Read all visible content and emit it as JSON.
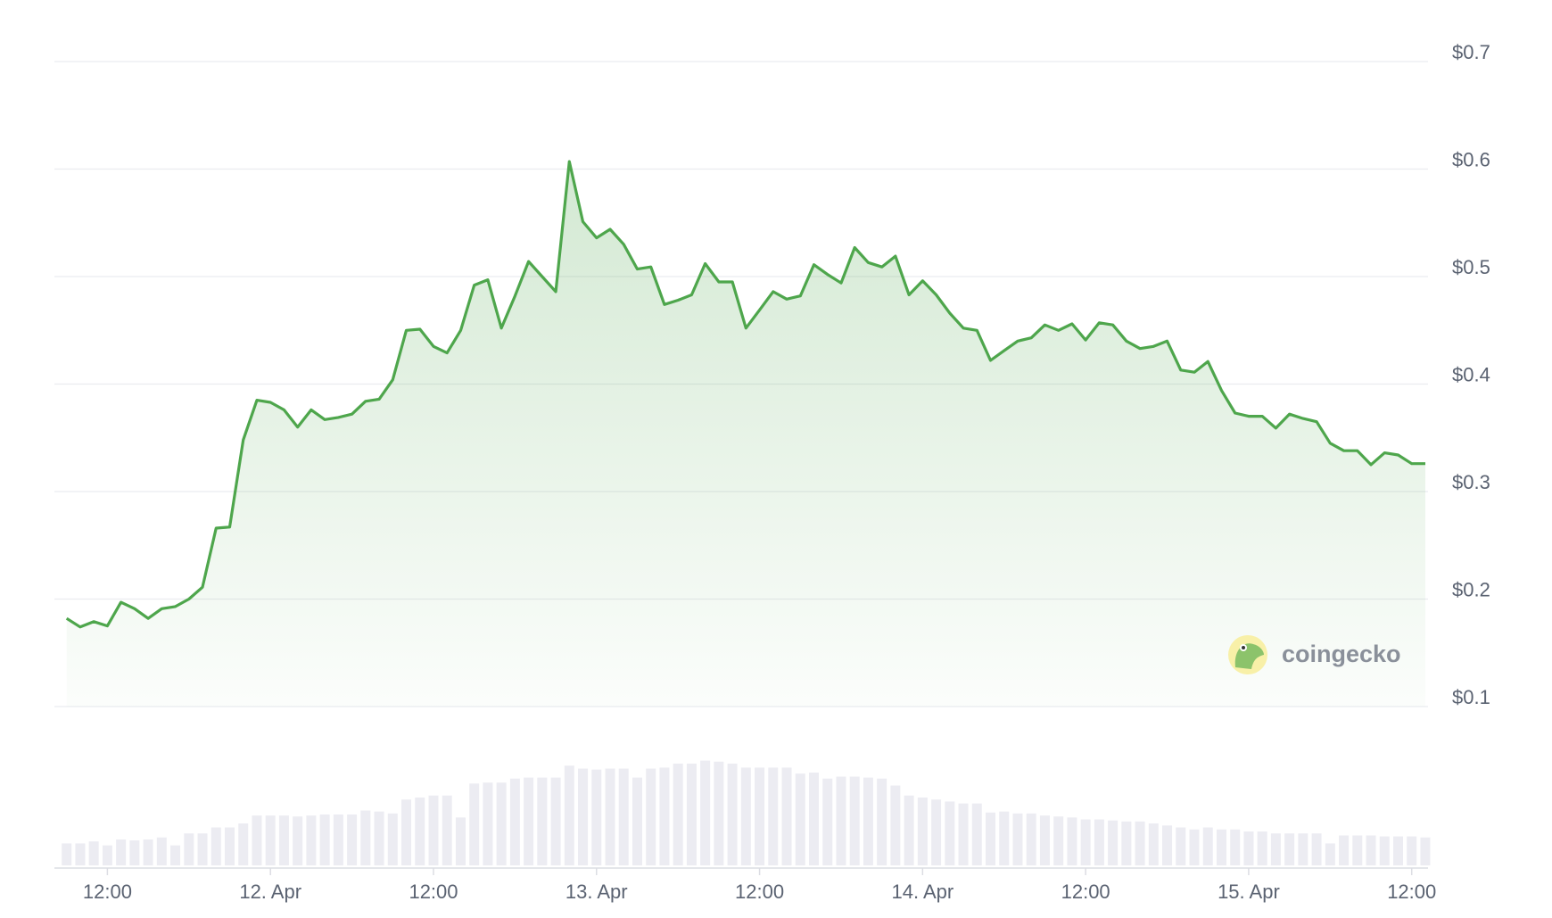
{
  "chart_data": [
    {
      "type": "line",
      "x": [
        9,
        10,
        11,
        12,
        13,
        14,
        15,
        16,
        17,
        18,
        19,
        20,
        21,
        22,
        23,
        24,
        25,
        26,
        27,
        28,
        29,
        30,
        31,
        32,
        33,
        34,
        35,
        36,
        37,
        38,
        39,
        40,
        41,
        42,
        43,
        44,
        45,
        46,
        47,
        48,
        49,
        50,
        51,
        52,
        53,
        54,
        55,
        56,
        57,
        58,
        59,
        60,
        61,
        62,
        63,
        64,
        65,
        66,
        67,
        68,
        69,
        70,
        71,
        72,
        73,
        74,
        75,
        76,
        77,
        78,
        79,
        80,
        81,
        82,
        83,
        84,
        85,
        86,
        87,
        88,
        89,
        90,
        91,
        92,
        93,
        94,
        95,
        96,
        97,
        98,
        99,
        100,
        101,
        102,
        103,
        104,
        105,
        106,
        107,
        108,
        109
      ],
      "series": [
        {
          "color": "#4ea64c",
          "values": [
            0.182,
            0.174,
            0.179,
            0.175,
            0.197,
            0.191,
            0.182,
            0.191,
            0.193,
            0.2,
            0.211,
            0.266,
            0.267,
            0.348,
            0.385,
            0.383,
            0.376,
            0.36,
            0.376,
            0.367,
            0.369,
            0.372,
            0.384,
            0.386,
            0.404,
            0.45,
            0.451,
            0.435,
            0.429,
            0.45,
            0.492,
            0.497,
            0.452,
            0.482,
            0.514,
            0.5,
            0.486,
            0.607,
            0.551,
            0.536,
            0.544,
            0.53,
            0.507,
            0.509,
            0.474,
            0.478,
            0.483,
            0.512,
            0.495,
            0.495,
            0.452,
            0.469,
            0.486,
            0.479,
            0.482,
            0.511,
            0.502,
            0.494,
            0.527,
            0.513,
            0.509,
            0.519,
            0.483,
            0.496,
            0.483,
            0.466,
            0.452,
            0.45,
            0.422,
            0.431,
            0.44,
            0.443,
            0.455,
            0.45,
            0.456,
            0.441,
            0.457,
            0.455,
            0.44,
            0.433,
            0.435,
            0.44,
            0.413,
            0.411,
            0.421,
            0.394,
            0.373,
            0.37,
            0.37,
            0.359,
            0.372,
            0.368,
            0.365,
            0.345,
            0.338,
            0.338,
            0.325,
            0.336,
            0.334,
            0.326,
            0.326
          ]
        }
      ],
      "xlim": [
        8.1,
        109.2
      ],
      "xticks": [
        {
          "value": 12,
          "label": "12:00"
        },
        {
          "value": 24,
          "label": "12. Apr"
        },
        {
          "value": 36,
          "label": "12:00"
        },
        {
          "value": 48,
          "label": "13. Apr"
        },
        {
          "value": 60,
          "label": "12:00"
        },
        {
          "value": 72,
          "label": "14. Apr"
        },
        {
          "value": 84,
          "label": "12:00"
        },
        {
          "value": 96,
          "label": "15. Apr"
        },
        {
          "value": 108,
          "label": "12:00"
        }
      ],
      "ylim": [
        0.1,
        0.7
      ],
      "yticks": [
        {
          "value": 0.1,
          "label": "$0.1"
        },
        {
          "value": 0.2,
          "label": "$0.2"
        },
        {
          "value": 0.3,
          "label": "$0.3"
        },
        {
          "value": 0.4,
          "label": "$0.4"
        },
        {
          "value": 0.5,
          "label": "$0.5"
        },
        {
          "value": 0.6,
          "label": "$0.6"
        },
        {
          "value": 0.7,
          "label": "$0.7"
        }
      ],
      "grid": true,
      "watermark": "coingecko"
    },
    {
      "type": "bar",
      "color": "#ececf2",
      "ylim": [
        0,
        110
      ],
      "values": [
        22,
        22,
        24,
        20,
        26,
        25,
        26,
        28,
        20,
        32,
        32,
        38,
        38,
        42,
        50,
        50,
        50,
        49,
        50,
        51,
        51,
        51,
        55,
        54,
        52,
        66,
        68,
        70,
        70,
        48,
        82,
        83,
        83,
        87,
        88,
        88,
        88,
        100,
        97,
        96,
        97,
        97,
        88,
        97,
        98,
        102,
        102,
        105,
        104,
        102,
        98,
        98,
        98,
        98,
        92,
        93,
        87,
        89,
        89,
        88,
        87,
        80,
        70,
        68,
        66,
        64,
        62,
        62,
        53,
        54,
        52,
        52,
        50,
        49,
        48,
        46,
        46,
        45,
        44,
        44,
        42,
        40,
        38,
        36,
        38,
        36,
        36,
        34,
        34,
        32,
        32,
        32,
        32,
        22,
        30,
        30,
        30,
        29,
        29,
        29,
        28
      ]
    }
  ]
}
